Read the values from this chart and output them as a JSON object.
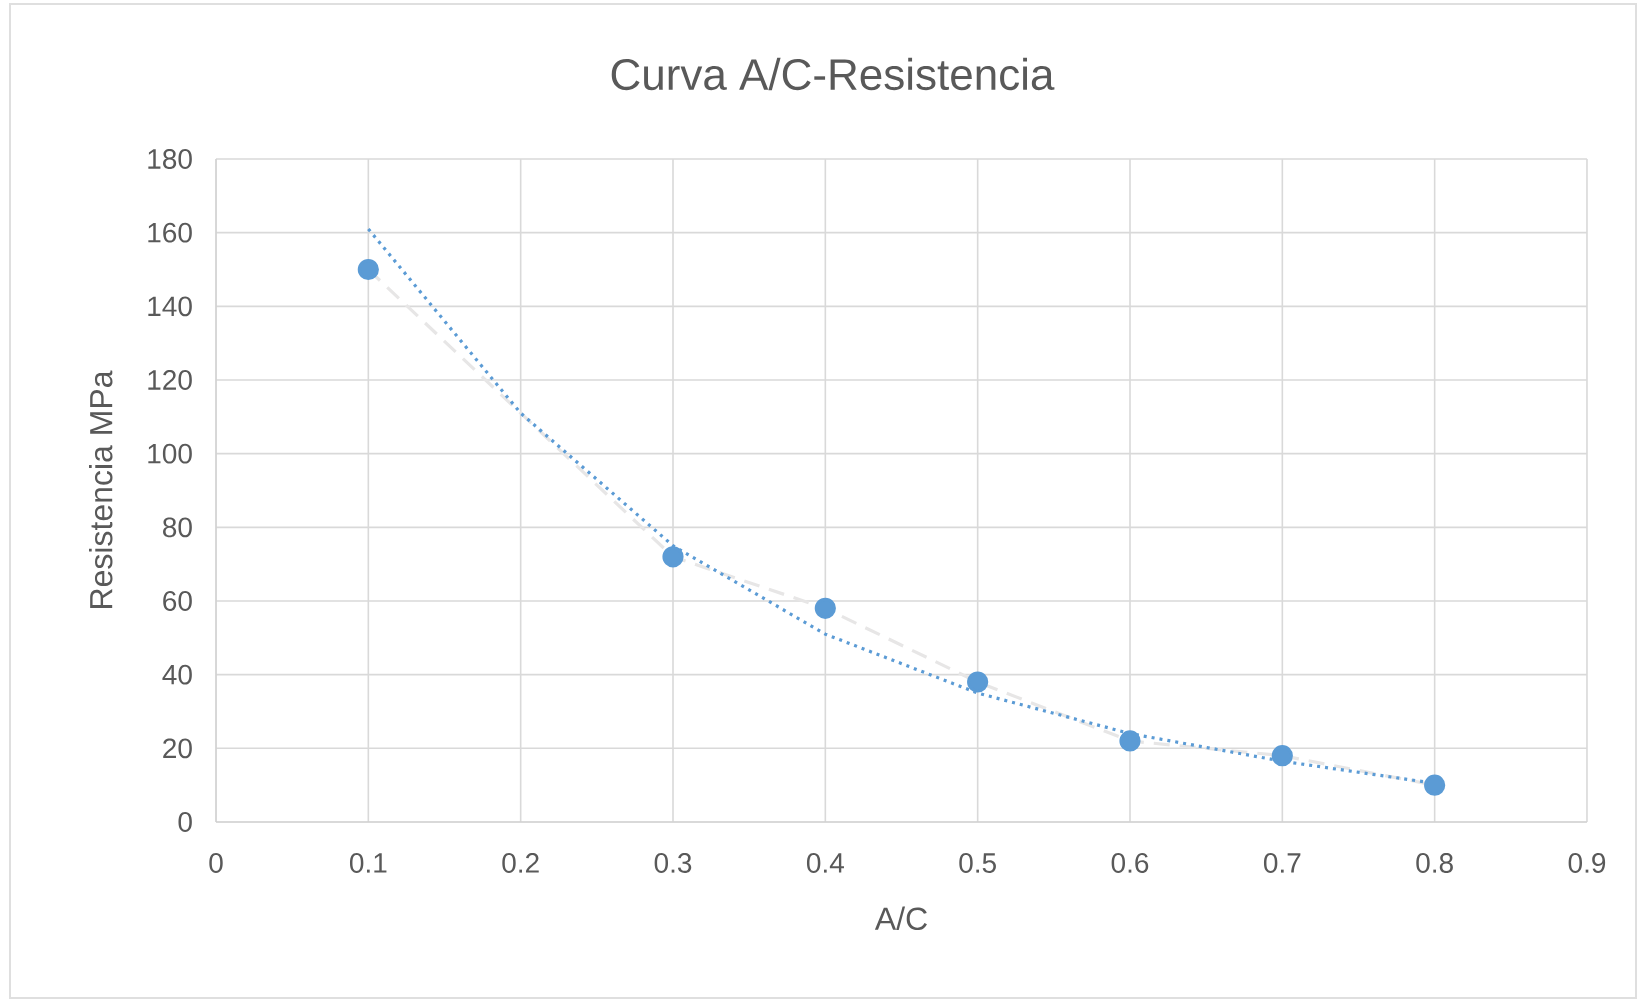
{
  "chart_data": {
    "type": "line",
    "title": "Curva A/C-Resistencia",
    "xlabel": "A/C",
    "ylabel": "Resistencia MPa",
    "xlim": [
      0,
      0.9
    ],
    "xticks": [
      0,
      0.1,
      0.2,
      0.3,
      0.4,
      0.5,
      0.6,
      0.7,
      0.8,
      0.9
    ],
    "ylim": [
      0,
      180
    ],
    "yticks": [
      0,
      20,
      40,
      60,
      80,
      100,
      120,
      140,
      160,
      180
    ],
    "grid": true,
    "series": [
      {
        "color": "#e7e6e6",
        "line_style": "dashed",
        "marker": "none",
        "x": [
          0.1,
          0.3,
          0.4,
          0.5,
          0.6,
          0.7,
          0.8
        ],
        "values": [
          150,
          72,
          58,
          38,
          22,
          18,
          10
        ]
      },
      {
        "type": "scatter",
        "color": "#5b9bd5",
        "marker": "circle",
        "x": [
          0.1,
          0.3,
          0.4,
          0.5,
          0.6,
          0.7,
          0.8
        ],
        "values": [
          150,
          72,
          58,
          38,
          22,
          18,
          10
        ]
      },
      {
        "type": "line",
        "color": "#5b9bd5",
        "line_style": "dotted",
        "marker": "none",
        "x": [
          0.1,
          0.2,
          0.3,
          0.4,
          0.5,
          0.6,
          0.7,
          0.8
        ],
        "values": [
          161,
          111,
          75,
          51,
          35,
          24,
          16.5,
          10.5
        ]
      }
    ]
  }
}
